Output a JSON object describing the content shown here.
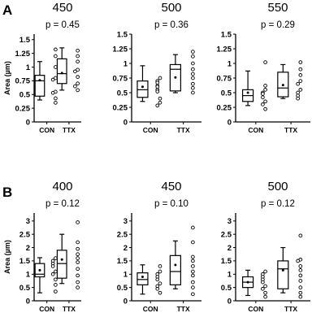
{
  "figure": {
    "panels": [
      {
        "label": "A"
      },
      {
        "label": "B"
      }
    ]
  },
  "chart_data": [
    {
      "type": "box",
      "panel": "A",
      "title": "450",
      "annotation": "p = 0.45",
      "ylabel": "Area (µm)",
      "ylim": [
        0,
        1.6
      ],
      "yticks": [
        "0",
        "0.25",
        "0.5",
        "0.75",
        "1",
        "1.25",
        "1.5"
      ],
      "categories": [
        "CON",
        "TTX"
      ],
      "series": [
        {
          "name": "CON",
          "box": {
            "min": 0.4,
            "q1": 0.47,
            "median": 0.75,
            "q3": 0.85,
            "max": 1.1
          },
          "mean": 0.76,
          "points": [
            1.32,
            1.2,
            1.0,
            0.8,
            0.77,
            0.55,
            0.53,
            0.43,
            0.35
          ]
        },
        {
          "name": "TTX",
          "box": {
            "min": 0.58,
            "q1": 0.7,
            "median": 0.88,
            "q3": 1.15,
            "max": 1.35
          },
          "mean": 0.89,
          "points": [
            1.3,
            1.2,
            1.1,
            0.95,
            0.92,
            0.82,
            0.7,
            0.65,
            0.58
          ]
        }
      ]
    },
    {
      "type": "box",
      "panel": "A",
      "title": "500",
      "annotation": "p = 0.36",
      "ylabel": "",
      "ylim": [
        0,
        1.5
      ],
      "yticks": [
        "0",
        "0.25",
        "0.5",
        "0.75",
        "1",
        "1.25",
        "1.5"
      ],
      "categories": [
        "CON",
        "TTX"
      ],
      "series": [
        {
          "name": "CON",
          "box": {
            "min": 0.35,
            "q1": 0.42,
            "median": 0.55,
            "q3": 0.7,
            "max": 0.96
          },
          "mean": 0.6,
          "points": [
            0.75,
            0.7,
            0.67,
            0.62,
            0.6,
            0.55,
            0.52,
            0.4,
            0.33,
            0.28
          ]
        },
        {
          "name": "TTX",
          "box": {
            "min": 0.5,
            "q1": 0.53,
            "median": 0.9,
            "q3": 0.98,
            "max": 1.15
          },
          "mean": 0.76,
          "points": [
            1.2,
            1.12,
            1.0,
            0.9,
            0.82,
            0.75,
            0.65,
            0.58,
            0.5
          ]
        }
      ]
    },
    {
      "type": "box",
      "panel": "A",
      "title": "550",
      "annotation": "p = 0.29",
      "ylabel": "",
      "ylim": [
        0,
        1.5
      ],
      "yticks": [
        "0",
        "0.25",
        "0.5",
        "0.75",
        "1",
        "1.25",
        "1.5"
      ],
      "categories": [
        "CON",
        "TTX"
      ],
      "series": [
        {
          "name": "CON",
          "box": {
            "min": 0.28,
            "q1": 0.35,
            "median": 0.45,
            "q3": 0.55,
            "max": 0.87
          },
          "mean": 0.5,
          "points": [
            1.02,
            0.62,
            0.55,
            0.5,
            0.48,
            0.42,
            0.35,
            0.3,
            0.22
          ]
        },
        {
          "name": "TTX",
          "box": {
            "min": 0.4,
            "q1": 0.43,
            "median": 0.58,
            "q3": 0.85,
            "max": 0.98
          },
          "mean": 0.63,
          "points": [
            1.02,
            0.9,
            0.8,
            0.7,
            0.65,
            0.55,
            0.5,
            0.45,
            0.4
          ]
        }
      ]
    },
    {
      "type": "box",
      "panel": "B",
      "title": "400",
      "annotation": "p = 0.12",
      "ylabel": "Area (µm)",
      "ylim": [
        0,
        3.3
      ],
      "yticks": [
        "0",
        "0.5",
        "1",
        "1.5",
        "2",
        "2.5",
        "3"
      ],
      "categories": [
        "CON",
        "TTX"
      ],
      "series": [
        {
          "name": "CON",
          "box": {
            "min": 0.3,
            "q1": 0.9,
            "median": 1.0,
            "q3": 1.4,
            "max": 1.62
          },
          "mean": 1.15,
          "points": [
            1.6,
            1.5,
            1.4,
            1.3,
            1.1,
            1.0,
            0.8,
            0.6,
            0.35
          ]
        },
        {
          "name": "TTX",
          "box": {
            "min": 0.65,
            "q1": 0.85,
            "median": 1.4,
            "q3": 1.9,
            "max": 2.5
          },
          "mean": 1.55,
          "points": [
            2.95,
            2.2,
            1.95,
            1.75,
            1.6,
            1.45,
            1.2,
            0.95,
            0.7,
            0.5
          ]
        }
      ]
    },
    {
      "type": "box",
      "panel": "B",
      "title": "450",
      "annotation": "p = 0.10",
      "ylabel": "",
      "ylim": [
        0,
        3.3
      ],
      "yticks": [
        "0",
        "0.5",
        "1",
        "1.5",
        "2",
        "2.5",
        "3"
      ],
      "categories": [
        "CON",
        "TTX"
      ],
      "series": [
        {
          "name": "CON",
          "box": {
            "min": 0.25,
            "q1": 0.6,
            "median": 0.8,
            "q3": 1.05,
            "max": 1.35
          },
          "mean": 0.9,
          "points": [
            1.3,
            1.1,
            1.0,
            0.9,
            0.8,
            0.65,
            0.55,
            0.45,
            0.3
          ]
        },
        {
          "name": "TTX",
          "box": {
            "min": 0.45,
            "q1": 0.6,
            "median": 1.1,
            "q3": 1.7,
            "max": 2.25
          },
          "mean": 1.35,
          "points": [
            2.75,
            2.2,
            1.65,
            1.5,
            1.3,
            1.1,
            0.95,
            0.7,
            0.5,
            0.25
          ]
        }
      ]
    },
    {
      "type": "box",
      "panel": "B",
      "title": "500",
      "annotation": "p = 0.12",
      "ylabel": "",
      "ylim": [
        0,
        3.3
      ],
      "yticks": [
        "0",
        "0.5",
        "1",
        "1.5",
        "2",
        "2.5",
        "3"
      ],
      "categories": [
        "CON",
        "TTX"
      ],
      "series": [
        {
          "name": "CON",
          "box": {
            "min": 0.2,
            "q1": 0.5,
            "median": 0.7,
            "q3": 0.9,
            "max": 1.15
          },
          "mean": 0.7,
          "points": [
            1.1,
            1.0,
            0.9,
            0.8,
            0.7,
            0.55,
            0.45,
            0.3,
            0.15
          ]
        },
        {
          "name": "TTX",
          "box": {
            "min": 0.3,
            "q1": 0.45,
            "median": 1.2,
            "q3": 1.5,
            "max": 2.0
          },
          "mean": 1.15,
          "points": [
            2.45,
            1.55,
            1.5,
            1.3,
            1.15,
            0.95,
            0.75,
            0.5,
            0.3,
            0.15
          ]
        }
      ]
    }
  ]
}
